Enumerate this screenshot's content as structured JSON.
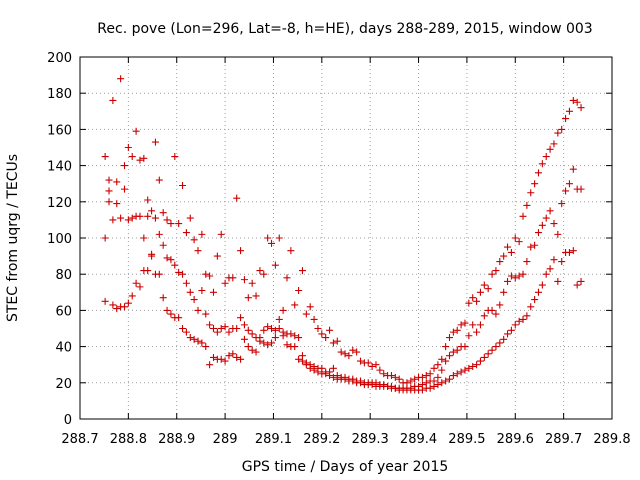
{
  "chart_data": {
    "type": "scatter",
    "title": "Rec. pove (Lon=296, Lat=-8, h=HE), days 288-289, 2015, window 003",
    "xlabel": "GPS time / Days of year 2015",
    "ylabel": "STEC from uqrg / TECUs",
    "xlim": [
      288.7,
      289.8
    ],
    "ylim": [
      0,
      200
    ],
    "xticks": [
      "288.7",
      "288.8",
      "288.9",
      "289",
      "289.1",
      "289.2",
      "289.3",
      "289.4",
      "289.5",
      "289.6",
      "289.7",
      "289.8"
    ],
    "yticks": [
      "0",
      "20",
      "40",
      "60",
      "80",
      "100",
      "120",
      "140",
      "160",
      "180",
      "200"
    ],
    "grid": true,
    "marker": "+",
    "marker_color": "#cc0000",
    "series": [
      {
        "x": [
          288.752,
          288.76,
          288.768,
          288.776,
          288.784,
          288.792,
          288.8,
          288.808,
          288.816,
          288.824,
          288.832,
          288.84,
          288.848,
          288.856,
          288.864,
          288.872,
          288.88,
          288.888,
          288.896,
          288.904,
          288.912,
          288.92,
          288.928,
          288.936,
          288.944,
          288.952,
          288.96,
          288.968,
          288.976,
          288.984,
          288.992,
          289.0,
          289.008,
          289.016,
          289.024,
          289.032,
          289.04,
          289.048,
          289.056,
          289.064,
          289.072,
          289.08,
          289.088,
          289.096,
          289.104,
          289.112,
          289.12,
          289.128,
          289.136,
          289.144,
          289.152,
          289.16,
          289.168,
          289.176,
          289.184,
          289.192,
          289.2,
          289.208,
          289.216,
          289.224,
          289.232,
          289.24,
          289.248,
          289.256,
          289.264,
          289.272,
          289.28,
          289.288,
          289.296,
          289.304,
          289.312,
          289.32,
          289.328,
          289.336,
          289.344,
          289.352,
          289.36,
          289.368,
          289.376,
          289.384,
          289.392,
          289.4,
          289.408,
          289.416,
          289.424,
          289.432,
          289.44,
          289.448,
          289.456,
          289.464,
          289.472,
          289.48,
          289.488,
          289.496,
          289.504,
          289.512,
          289.52,
          289.528,
          289.536,
          289.544,
          289.552,
          289.56,
          289.568,
          289.576,
          289.584,
          289.592,
          289.6,
          289.608,
          289.616,
          289.624,
          289.632,
          289.64,
          289.648,
          289.656,
          289.664,
          289.672,
          289.68,
          289.688,
          289.696,
          289.704,
          289.712,
          289.72,
          289.728,
          289.736
        ],
        "y": [
          145,
          132,
          176,
          131,
          188,
          140,
          150,
          145,
          159,
          143,
          144,
          121,
          115,
          153,
          132,
          114,
          110,
          108,
          145,
          108,
          129,
          103,
          111,
          99,
          93,
          102,
          80,
          79,
          70,
          90,
          102,
          75,
          78,
          78,
          122,
          93,
          77,
          67,
          75,
          68,
          82,
          80,
          100,
          97,
          85,
          100,
          60,
          78,
          93,
          63,
          71,
          82,
          58,
          62,
          55,
          50,
          47,
          45,
          49,
          42,
          43,
          37,
          36,
          35,
          38,
          37,
          32,
          31,
          31,
          29,
          30,
          27,
          25,
          24,
          24,
          23,
          22,
          20,
          20,
          21,
          22,
          23,
          23,
          24,
          25,
          28,
          30,
          33,
          40,
          45,
          48,
          49,
          52,
          53,
          64,
          67,
          65,
          70,
          74,
          72,
          80,
          82,
          87,
          90,
          95,
          92,
          100,
          98,
          112,
          118,
          125,
          130,
          136,
          141,
          145,
          149,
          152,
          158,
          160,
          166,
          170,
          176,
          175,
          172
        ]
      },
      {
        "x": [
          288.752,
          288.76,
          288.768,
          288.776,
          288.784,
          288.792,
          288.8,
          288.808,
          288.816,
          288.824,
          288.832,
          288.84,
          288.848,
          288.856,
          288.864,
          288.872,
          288.88,
          288.888,
          288.896,
          288.904,
          288.912,
          288.92,
          288.928,
          288.936,
          288.944,
          288.952,
          288.96,
          288.968,
          288.976,
          288.984,
          288.992,
          289.0,
          289.008,
          289.016,
          289.024,
          289.032,
          289.04,
          289.048,
          289.056,
          289.064,
          289.072,
          289.08,
          289.088,
          289.096,
          289.104,
          289.112,
          289.12,
          289.128,
          289.136,
          289.144,
          289.152,
          289.16,
          289.168,
          289.176,
          289.184,
          289.192,
          289.2,
          289.208,
          289.216,
          289.224,
          289.232,
          289.24,
          289.248,
          289.256,
          289.264,
          289.272,
          289.28,
          289.288,
          289.296,
          289.304,
          289.312,
          289.32,
          289.328,
          289.336,
          289.344,
          289.352,
          289.36,
          289.368,
          289.376,
          289.384,
          289.392,
          289.4,
          289.408,
          289.416,
          289.424,
          289.432,
          289.44,
          289.448,
          289.456,
          289.464,
          289.472,
          289.48,
          289.488,
          289.496,
          289.504,
          289.512,
          289.52,
          289.528,
          289.536,
          289.544,
          289.552,
          289.56,
          289.568,
          289.576,
          289.584,
          289.592,
          289.6,
          289.608,
          289.616,
          289.624,
          289.632,
          289.64,
          289.648,
          289.656,
          289.664,
          289.672,
          289.68,
          289.688,
          289.696,
          289.704,
          289.712,
          289.72,
          289.728,
          289.736
        ],
        "y": [
          100,
          126,
          110,
          119,
          111,
          127,
          110,
          111,
          112,
          112,
          100,
          112,
          91,
          111,
          102,
          96,
          89,
          88,
          85,
          81,
          80,
          75,
          70,
          66,
          60,
          71,
          58,
          52,
          50,
          48,
          50,
          51,
          48,
          50,
          50,
          56,
          52,
          49,
          47,
          45,
          45,
          49,
          51,
          50,
          49,
          50,
          48,
          47,
          47,
          46,
          45,
          35,
          31,
          30,
          29,
          28,
          28,
          26,
          26,
          28,
          24,
          23,
          23,
          22,
          22,
          21,
          21,
          20,
          20,
          20,
          20,
          19,
          19,
          18,
          18,
          17,
          17,
          17,
          17,
          17,
          18,
          18,
          19,
          20,
          21,
          21,
          23,
          27,
          32,
          35,
          37,
          38,
          40,
          40,
          46,
          52,
          48,
          52,
          57,
          60,
          60,
          58,
          63,
          70,
          76,
          79,
          78,
          79,
          80,
          87,
          95,
          96,
          103,
          107,
          111,
          115,
          108,
          102,
          119,
          126,
          130,
          138,
          127,
          127
        ]
      },
      {
        "x": [
          288.752,
          288.76,
          288.768,
          288.776,
          288.784,
          288.792,
          288.8,
          288.808,
          288.816,
          288.824,
          288.832,
          288.84,
          288.848,
          288.856,
          288.864,
          288.872,
          288.88,
          288.888,
          288.896,
          288.904,
          288.912,
          288.92,
          288.928,
          288.936,
          288.944,
          288.952,
          288.96,
          288.968,
          288.976,
          288.984,
          288.992,
          289.0,
          289.008,
          289.016,
          289.024,
          289.032,
          289.04,
          289.048,
          289.056,
          289.064,
          289.072,
          289.08,
          289.088,
          289.096,
          289.104,
          289.112,
          289.12,
          289.128,
          289.136,
          289.144,
          289.152,
          289.16,
          289.168,
          289.176,
          289.184,
          289.192,
          289.2,
          289.208,
          289.216,
          289.224,
          289.232,
          289.24,
          289.248,
          289.256,
          289.264,
          289.272,
          289.28,
          289.288,
          289.296,
          289.304,
          289.312,
          289.32,
          289.328,
          289.336,
          289.344,
          289.352,
          289.36,
          289.368,
          289.376,
          289.384,
          289.392,
          289.4,
          289.408,
          289.416,
          289.424,
          289.432,
          289.44,
          289.448,
          289.456,
          289.464,
          289.472,
          289.48,
          289.488,
          289.496,
          289.504,
          289.512,
          289.52,
          289.528,
          289.536,
          289.544,
          289.552,
          289.56,
          289.568,
          289.576,
          289.584,
          289.592,
          289.6,
          289.608,
          289.616,
          289.624,
          289.632,
          289.64,
          289.648,
          289.656,
          289.664,
          289.672,
          289.68,
          289.688,
          289.696,
          289.704,
          289.712,
          289.72,
          289.728,
          289.736
        ],
        "y": [
          65,
          120,
          63,
          61,
          62,
          62,
          64,
          68,
          75,
          73,
          82,
          82,
          90,
          80,
          80,
          67,
          60,
          58,
          56,
          56,
          50,
          48,
          45,
          44,
          43,
          42,
          40,
          30,
          34,
          33,
          33,
          32,
          35,
          36,
          34,
          33,
          44,
          40,
          38,
          37,
          43,
          42,
          41,
          42,
          45,
          55,
          46,
          41,
          40,
          40,
          33,
          32,
          30,
          28,
          27,
          26,
          25,
          25,
          24,
          23,
          22,
          22,
          22,
          21,
          21,
          20,
          20,
          19,
          19,
          19,
          18,
          18,
          18,
          18,
          17,
          17,
          16,
          16,
          16,
          16,
          16,
          16,
          16,
          17,
          17,
          18,
          19,
          20,
          21,
          22,
          24,
          25,
          26,
          27,
          28,
          29,
          30,
          32,
          34,
          36,
          38,
          40,
          42,
          44,
          47,
          49,
          52,
          54,
          55,
          57,
          62,
          66,
          70,
          74,
          80,
          83,
          88,
          76,
          87,
          92,
          92,
          93,
          74,
          76
        ]
      }
    ]
  }
}
